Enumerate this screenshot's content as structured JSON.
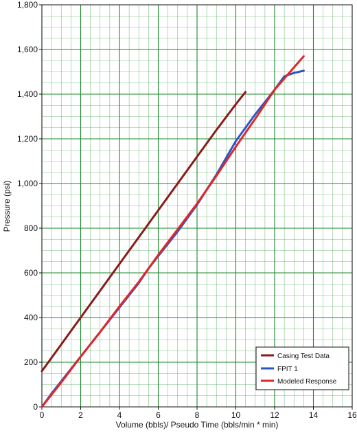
{
  "chart_data": {
    "type": "line",
    "title": "",
    "xlabel": "Volume (bbls)/ Pseudo Time (bbls/min * min)",
    "ylabel": "Pressure (psi)",
    "xlim": [
      0,
      16
    ],
    "ylim": [
      0,
      1800
    ],
    "x_ticks": [
      0,
      2,
      4,
      6,
      8,
      10,
      12,
      14,
      16
    ],
    "x_tick_labels": [
      "0",
      "2",
      "4",
      "6",
      "8",
      "10",
      "12",
      "14",
      "16"
    ],
    "y_ticks": [
      0,
      200,
      400,
      600,
      800,
      1000,
      1200,
      1400,
      1600,
      1800
    ],
    "y_tick_labels": [
      "0",
      "200",
      "400",
      "600",
      "800",
      "1,000",
      "1,200",
      "1,400",
      "1,600",
      "1,800"
    ],
    "grid": true,
    "grid_minor_step": {
      "x": 0.5,
      "y": 50
    },
    "grid_color": "#1a8a2a",
    "legend_position": "bottom-right",
    "series": [
      {
        "name": "Casing Test Data",
        "color": "#8b1a1a",
        "x": [
          0,
          1,
          2,
          3,
          4,
          5,
          6,
          7,
          8,
          9,
          10,
          10.5
        ],
        "y": [
          160,
          280,
          400,
          520,
          640,
          760,
          880,
          1000,
          1120,
          1240,
          1355,
          1410
        ]
      },
      {
        "name": "FPIT 1",
        "color": "#2d55c8",
        "x": [
          0,
          0.5,
          1,
          2,
          3,
          4,
          5,
          5.5,
          6,
          7,
          8,
          9,
          10,
          11,
          12,
          12.5,
          13,
          13.5
        ],
        "y": [
          0,
          60,
          115,
          225,
          335,
          445,
          555,
          620,
          675,
          785,
          905,
          1040,
          1190,
          1310,
          1420,
          1480,
          1495,
          1505
        ]
      },
      {
        "name": "Modeled Response",
        "color": "#e0262a",
        "x": [
          0,
          1,
          2,
          3,
          4,
          5,
          6,
          7,
          8,
          9,
          10,
          11,
          12,
          13,
          13.5
        ],
        "y": [
          0,
          110,
          225,
          335,
          450,
          560,
          680,
          795,
          910,
          1035,
          1165,
          1290,
          1420,
          1520,
          1570
        ]
      }
    ]
  }
}
